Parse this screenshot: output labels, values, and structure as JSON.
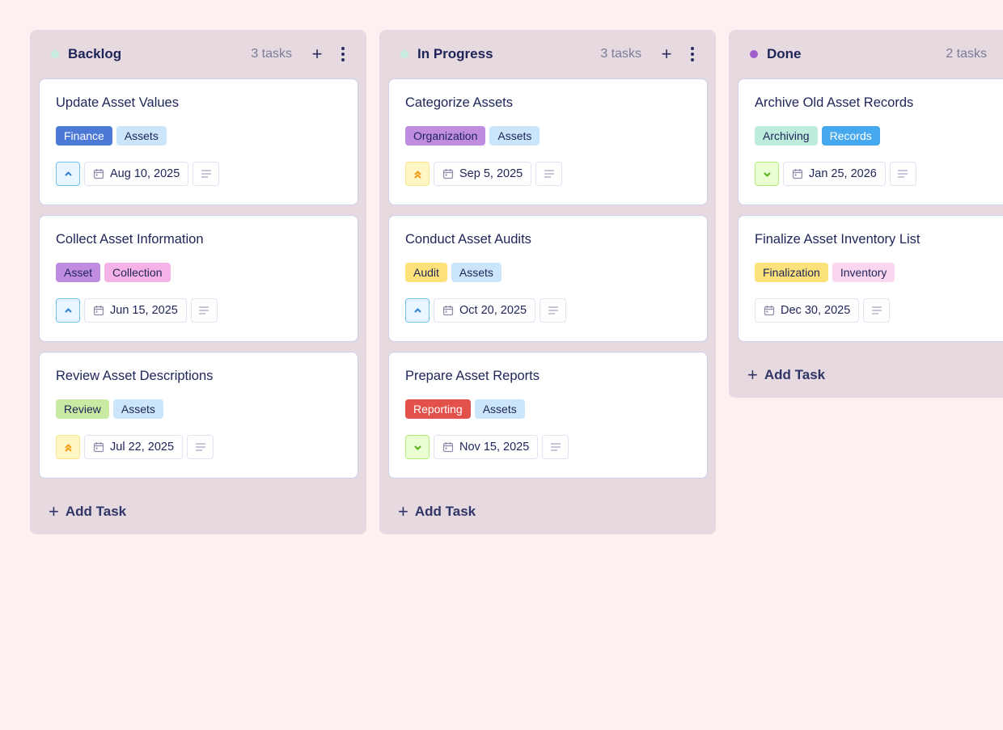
{
  "columns": [
    {
      "title": "Backlog",
      "count": "3 tasks",
      "dot_color": "#c6eedf",
      "show_actions": true,
      "add_label": "Add Task",
      "cards": [
        {
          "title": "Update Asset Values",
          "tags": [
            {
              "label": "Finance",
              "bg": "#4c78d6",
              "fg": "#ffffff"
            },
            {
              "label": "Assets",
              "bg": "#cbe6fb",
              "fg": "#1e2457"
            }
          ],
          "priority": "medium",
          "date": "Aug 10, 2025"
        },
        {
          "title": "Collect Asset Information",
          "tags": [
            {
              "label": "Asset",
              "bg": "#c08ce0",
              "fg": "#1e2457"
            },
            {
              "label": "Collection",
              "bg": "#f5b2e6",
              "fg": "#1e2457"
            }
          ],
          "priority": "medium",
          "date": "Jun 15, 2025"
        },
        {
          "title": "Review Asset Descriptions",
          "tags": [
            {
              "label": "Review",
              "bg": "#c8eaa2",
              "fg": "#1e2457"
            },
            {
              "label": "Assets",
              "bg": "#cbe6fb",
              "fg": "#1e2457"
            }
          ],
          "priority": "high",
          "date": "Jul 22, 2025"
        }
      ]
    },
    {
      "title": "In Progress",
      "count": "3 tasks",
      "dot_color": "#c6eedf",
      "show_actions": true,
      "add_label": "Add Task",
      "cards": [
        {
          "title": "Categorize Assets",
          "tags": [
            {
              "label": "Organization",
              "bg": "#c08ce0",
              "fg": "#1e2457"
            },
            {
              "label": "Assets",
              "bg": "#cbe6fb",
              "fg": "#1e2457"
            }
          ],
          "priority": "high",
          "date": "Sep 5, 2025"
        },
        {
          "title": "Conduct Asset Audits",
          "tags": [
            {
              "label": "Audit",
              "bg": "#fde27a",
              "fg": "#1e2457"
            },
            {
              "label": "Assets",
              "bg": "#cbe6fb",
              "fg": "#1e2457"
            }
          ],
          "priority": "medium",
          "date": "Oct 20, 2025"
        },
        {
          "title": "Prepare Asset Reports",
          "tags": [
            {
              "label": "Reporting",
              "bg": "#e3514b",
              "fg": "#ffffff"
            },
            {
              "label": "Assets",
              "bg": "#cbe6fb",
              "fg": "#1e2457"
            }
          ],
          "priority": "low",
          "date": "Nov 15, 2025"
        }
      ]
    },
    {
      "title": "Done",
      "count": "2 tasks",
      "dot_color": "#9f5fce",
      "show_actions": false,
      "add_label": "Add Task",
      "cards": [
        {
          "title": "Archive Old Asset Records",
          "tags": [
            {
              "label": "Archiving",
              "bg": "#bdebdc",
              "fg": "#1e2457"
            },
            {
              "label": "Records",
              "bg": "#46a9ef",
              "fg": "#ffffff"
            }
          ],
          "priority": "low",
          "date": "Jan 25, 2026"
        },
        {
          "title": "Finalize Asset Inventory List",
          "tags": [
            {
              "label": "Finalization",
              "bg": "#fbe27a",
              "fg": "#1e2457"
            },
            {
              "label": "Inventory",
              "bg": "#fbd6f1",
              "fg": "#1e2457"
            }
          ],
          "priority": "none",
          "date": "Dec 30, 2025"
        }
      ]
    }
  ]
}
